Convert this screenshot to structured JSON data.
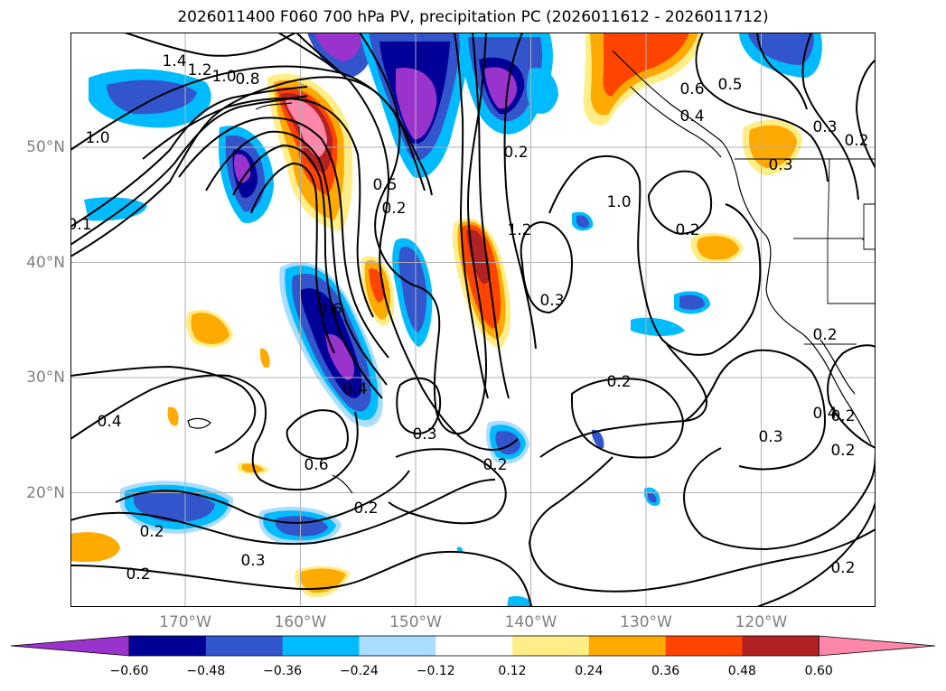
{
  "title": "2026011400 F060 700 hPa PV, precipitation PC (2026011612 - 2026011712)",
  "map": {
    "lat_ticks": [
      {
        "label": "50°N",
        "lat": 50
      },
      {
        "label": "40°N",
        "lat": 40
      },
      {
        "label": "30°N",
        "lat": 30
      },
      {
        "label": "20°N",
        "lat": 20
      }
    ],
    "lon_ticks": [
      {
        "label": "170°W",
        "lon": -170
      },
      {
        "label": "160°W",
        "lon": -160
      },
      {
        "label": "150°W",
        "lon": -150
      },
      {
        "label": "140°W",
        "lon": -140
      },
      {
        "label": "130°W",
        "lon": -130
      },
      {
        "label": "120°W",
        "lon": -120
      }
    ],
    "extent": {
      "lon_min": -180,
      "lon_max": -110,
      "lat_min": 10,
      "lat_max": 60
    },
    "gridlines": true,
    "contour_labels": [
      "1.4",
      "1.2",
      "1.0",
      "0.8",
      "1.0",
      "0.1",
      "0.6",
      "0.5",
      "0.4",
      "0.3",
      "0.2",
      "0.2",
      "0.3",
      "0.5",
      "0.2",
      "1.2",
      "1.0",
      "0.2",
      "0.3",
      "0.6",
      "0.4",
      "0.2",
      "0.4",
      "0.6",
      "0.2",
      "0.3",
      "0.2",
      "0.2",
      "0.3",
      "0.2",
      "0.3",
      "0.2",
      "0.2",
      "0.2",
      "0.4",
      "0.2"
    ]
  },
  "colorbar": {
    "labels": [
      "−0.60",
      "−0.48",
      "−0.36",
      "−0.24",
      "−0.12",
      "0.12",
      "0.24",
      "0.36",
      "0.48",
      "0.60"
    ],
    "colors": [
      "#9933cc",
      "#000099",
      "#3355cc",
      "#00bbff",
      "#aaddff",
      "#ffffff",
      "#ffee88",
      "#ffaa00",
      "#ff4400",
      "#b22222",
      "#ff88aa"
    ],
    "extend": "both"
  }
}
